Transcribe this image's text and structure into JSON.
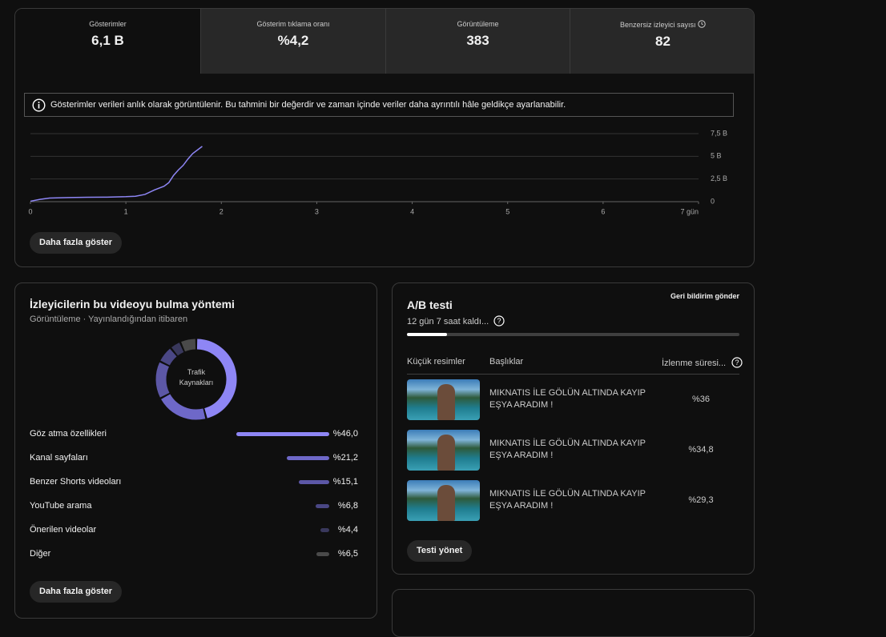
{
  "metrics": [
    {
      "label": "Gösterimler",
      "value": "6,1 B"
    },
    {
      "label": "Gösterim tıklama oranı",
      "value": "%4,2"
    },
    {
      "label": "Görüntüleme",
      "value": "383"
    },
    {
      "label": "Benzersiz izleyici sayısı",
      "value": "82"
    }
  ],
  "notice": "Gösterimler verileri anlık olarak görüntülenir. Bu tahmini bir değerdir ve zaman içinde veriler daha ayrıntılı hâle geldikçe ayarlanabilir.",
  "impressions_chart": {
    "type": "line",
    "x": [
      0,
      0.1,
      0.2,
      0.4,
      0.6,
      0.8,
      1.0,
      1.1,
      1.2,
      1.3,
      1.4,
      1.45,
      1.5,
      1.55,
      1.6,
      1.65,
      1.7,
      1.8
    ],
    "values": [
      50,
      250,
      400,
      450,
      480,
      500,
      550,
      600,
      800,
      1300,
      1700,
      2100,
      2900,
      3500,
      4000,
      4700,
      5300,
      6100
    ],
    "color": "#8e86f5",
    "xlim": [
      0,
      7
    ],
    "xticks": [
      0,
      1,
      2,
      3,
      4,
      5,
      6,
      {
        "value": 7,
        "label": "7 gün"
      }
    ],
    "ylim": [
      0,
      7500
    ],
    "yticks": [
      0,
      {
        "value": 2500,
        "label": "2,5 B"
      },
      {
        "value": 5000,
        "label": "5 B"
      },
      {
        "value": 7500,
        "label": "7,5 B"
      }
    ],
    "grid": true
  },
  "show_more_button": "Daha fazla göster",
  "traffic": {
    "title": "İzleyicilerin bu videoyu bulma yöntemi",
    "subtitle": "Görüntüleme · Yayınlandığından itibaren",
    "center_label": "Trafik Kaynakları",
    "sources": [
      {
        "name": "Göz atma özellikleri",
        "value": 46.0,
        "value_label": "%46,0",
        "color": "#8e86f5"
      },
      {
        "name": "Kanal sayfaları",
        "value": 21.2,
        "value_label": "%21,2",
        "color": "#6e68c8"
      },
      {
        "name": "Benzer Shorts videoları",
        "value": 15.1,
        "value_label": "%15,1",
        "color": "#5c57a6"
      },
      {
        "name": "YouTube arama",
        "value": 6.8,
        "value_label": "%6,8",
        "color": "#4a4785"
      },
      {
        "name": "Önerilen videolar",
        "value": 4.4,
        "value_label": "%4,4",
        "color": "#39385c"
      },
      {
        "name": "Diğer",
        "value": 6.5,
        "value_label": "%6,5",
        "color": "#4a4a4a"
      }
    ],
    "button": "Daha fazla göster"
  },
  "ab_test": {
    "title": "A/B testi",
    "feedback": "Geri bildirim gönder",
    "remaining": "12 gün 7 saat kaldı...",
    "columns": [
      "Küçük resimler",
      "Başlıklar",
      "İzlenme süresi..."
    ],
    "rows": [
      {
        "title": "MIKNATIS İLE GÖLÜN ALTINDA KAYIP EŞYA ARADIM !",
        "share": "%36"
      },
      {
        "title": "MIKNATIS İLE GÖLÜN ALTINDA KAYIP EŞYA ARADIM !",
        "share": "%34,8"
      },
      {
        "title": "MIKNATIS İLE GÖLÜN ALTINDA KAYIP EŞYA ARADIM !",
        "share": "%29,3"
      }
    ],
    "button": "Testi yönet"
  }
}
